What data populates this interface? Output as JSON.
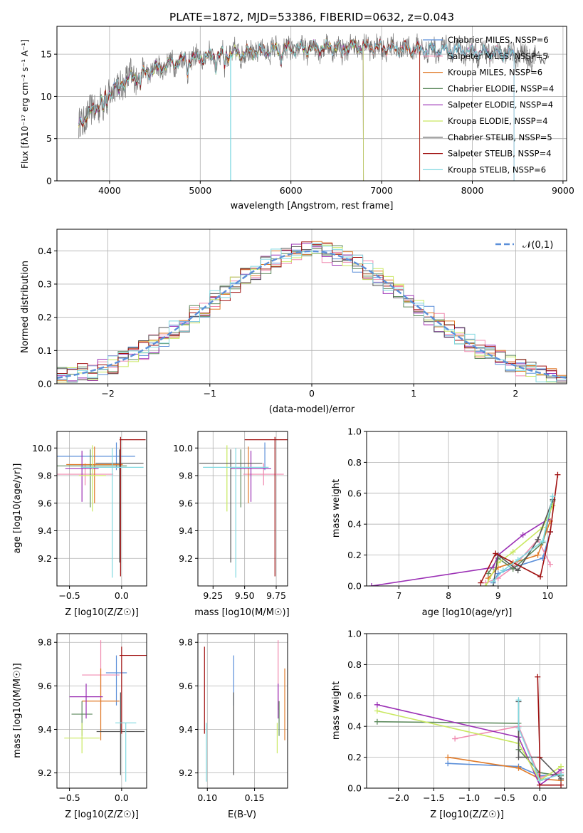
{
  "palette": [
    "#5b8fd9",
    "#f08bb0",
    "#e07a28",
    "#5d8a5d",
    "#9b30b5",
    "#c9e860",
    "#555555",
    "#a01010",
    "#7fd8e0"
  ],
  "panels": {
    "spectrum": {
      "title": "PLATE=1872, MJD=53386, FIBERID=0632, z=0.043",
      "xlabel": "wavelength [Angstrom, rest frame]",
      "ylabel": "Flux [fλ10⁻¹⁷ erg cm⁻² s⁻¹ A⁻¹]",
      "legend": [
        "Chabrier MILES, NSSP=6",
        "Salpeter MILES, NSSP=5",
        "Kroupa MILES, NSSP=6",
        "Chabrier ELODIE, NSSP=4",
        "Salpeter ELODIE, NSSP=4",
        "Kroupa ELODIE, NSSP=4",
        "Chabrier STELIB, NSSP=5",
        "Salpeter STELIB, NSSP=4",
        "Kroupa STELIB, NSSP=6"
      ]
    },
    "hist": {
      "xlabel": "(data-model)/error",
      "ylabel": "Normed distribution",
      "legend": "𝒩(0,1)"
    },
    "age_z": {
      "xlabel": "Z [log10(Z/Z☉)]",
      "ylabel": "age  [log10(age/yr)]"
    },
    "age_m": {
      "xlabel": "mass [log10(M/M☉)]"
    },
    "mw_age": {
      "xlabel": "age  [log10(age/yr)]",
      "ylabel": "mass weight"
    },
    "mass_z": {
      "xlabel": "Z [log10(Z/Z☉)]",
      "ylabel": "mass [log10(M/M☉)]"
    },
    "mass_e": {
      "xlabel": "E(B-V)"
    },
    "mw_z": {
      "xlabel": "Z [log10(Z/Z☉)]",
      "ylabel": "mass weight"
    }
  },
  "chart_data": [
    {
      "type": "line",
      "title": "PLATE=1872, MJD=53386, FIBERID=0632, z=0.043",
      "xlabel": "wavelength [Angstrom, rest frame]",
      "ylabel": "Flux [fλ10⁻¹⁷ erg cm⁻² s⁻¹ A⁻¹]",
      "xlim": [
        3420,
        9040
      ],
      "ylim": [
        0,
        18.3
      ],
      "xticks": [
        4000,
        5000,
        6000,
        7000,
        8000,
        9000
      ],
      "yticks": [
        0,
        5,
        10,
        15
      ],
      "legend_position": "right",
      "continuum": {
        "x": [
          3660,
          3700,
          3800,
          3900,
          4000,
          4100,
          4200,
          4300,
          4500,
          4700,
          5000,
          5300,
          5600,
          6000,
          6400,
          6800,
          7200,
          7600,
          8000,
          8400,
          8700
        ],
        "y": [
          6.5,
          7.2,
          8.2,
          9.3,
          10.5,
          11.4,
          12.0,
          12.4,
          13.2,
          14.0,
          14.6,
          15.0,
          15.3,
          15.6,
          15.8,
          15.9,
          15.7,
          15.5,
          15.3,
          15.0,
          14.6
        ]
      },
      "series": [
        {
          "name": "Chabrier MILES, NSSP=6",
          "x_range": [
            3660,
            8460
          ]
        },
        {
          "name": "Salpeter MILES, NSSP=5",
          "x_range": [
            3660,
            8460
          ]
        },
        {
          "name": "Kroupa MILES, NSSP=6",
          "x_range": [
            3660,
            7420
          ]
        },
        {
          "name": "Chabrier ELODIE, NSSP=4",
          "x_range": [
            3660,
            6800
          ]
        },
        {
          "name": "Salpeter ELODIE, NSSP=4",
          "x_range": [
            3660,
            6800
          ]
        },
        {
          "name": "Kroupa ELODIE, NSSP=4",
          "x_range": [
            3660,
            6800
          ]
        },
        {
          "name": "Chabrier STELIB, NSSP=5",
          "x_range": [
            3660,
            8850
          ]
        },
        {
          "name": "Salpeter STELIB, NSSP=4",
          "x_range": [
            3660,
            7420
          ]
        },
        {
          "name": "Kroupa STELIB, NSSP=6",
          "x_range": [
            3660,
            8460
          ]
        }
      ]
    },
    {
      "type": "histogram",
      "xlabel": "(data-model)/error",
      "ylabel": "Normed distribution",
      "xlim": [
        -2.5,
        2.5
      ],
      "ylim": [
        0,
        0.465
      ],
      "bin_width": 0.1,
      "xticks": [
        -2,
        -1,
        0,
        1,
        2
      ],
      "yticks": [
        0.0,
        0.1,
        0.2,
        0.3,
        0.4
      ],
      "reference_curve": "𝒩(0,1)",
      "legend_position": "top-right"
    },
    {
      "type": "errorbar",
      "xlabel": "Z [log10(Z/Z☉)]",
      "ylabel": "age  [log10(age/yr)]",
      "xlim": [
        -0.62,
        0.24
      ],
      "ylim": [
        9.0,
        10.12
      ],
      "xticks": [
        -0.5,
        0.0
      ],
      "yticks": [
        9.2,
        9.4,
        9.6,
        9.8,
        10.0
      ],
      "points": [
        {
          "x": -0.05,
          "xerr": [
            0.58,
            0.18
          ],
          "y": 9.94,
          "yerr": [
            0.1,
            0.1
          ]
        },
        {
          "x": -0.35,
          "xerr": [
            0.27,
            0.27
          ],
          "y": 9.81,
          "yerr": [
            0.08,
            0.08
          ]
        },
        {
          "x": -0.26,
          "xerr": [
            0.27,
            0.27
          ],
          "y": 9.88,
          "yerr": [
            0.28,
            0.13
          ]
        },
        {
          "x": -0.3,
          "xerr": [
            0.35,
            0.35
          ],
          "y": 9.87,
          "yerr": [
            0.3,
            0.12
          ]
        },
        {
          "x": -0.38,
          "xerr": [
            0.16,
            0.16
          ],
          "y": 9.85,
          "yerr": [
            0.24,
            0.13
          ]
        },
        {
          "x": -0.28,
          "xerr": [
            0.13,
            0.13
          ],
          "y": 9.8,
          "yerr": [
            0.26,
            0.22
          ]
        },
        {
          "x": -0.02,
          "xerr": [
            0.23,
            0.23
          ],
          "y": 9.89,
          "yerr": [
            0.72,
            0.1
          ]
        },
        {
          "x": -0.01,
          "xerr": [
            0.01,
            0.24
          ],
          "y": 10.06,
          "yerr": [
            0.99,
            0.02
          ]
        },
        {
          "x": -0.09,
          "xerr": [
            0.3,
            0.3
          ],
          "y": 9.86,
          "yerr": [
            0.8,
            0.14
          ]
        }
      ]
    },
    {
      "type": "errorbar",
      "xlabel": "mass [log10(M/M☉)]",
      "xlim": [
        9.13,
        9.84
      ],
      "ylim": [
        9.0,
        10.12
      ],
      "xticks": [
        9.25,
        9.5,
        9.75
      ],
      "yticks": [
        9.2,
        9.4,
        9.6,
        9.8,
        10.0
      ],
      "points": [
        {
          "x": 9.66,
          "y": 9.94,
          "yerr": [
            0.1,
            0.1
          ]
        },
        {
          "x": 9.65,
          "xerr": [
            0.16,
            0.16
          ],
          "y": 9.81,
          "yerr": [
            0.08,
            0.08
          ]
        },
        {
          "x": 9.53,
          "y": 9.88,
          "yerr": [
            0.28,
            0.13
          ]
        },
        {
          "x": 9.47,
          "y": 9.87,
          "yerr": [
            0.3,
            0.12
          ]
        },
        {
          "x": 9.55,
          "xerr": [
            0.16,
            0.16
          ],
          "y": 9.85,
          "yerr": [
            0.24,
            0.13
          ]
        },
        {
          "x": 9.36,
          "y": 9.8,
          "yerr": [
            0.26,
            0.22
          ]
        },
        {
          "x": 9.39,
          "xerr": [
            0.25,
            0.25
          ],
          "y": 9.89,
          "yerr": [
            0.72,
            0.1
          ]
        },
        {
          "x": 9.74,
          "xerr": [
            0.24,
            0.24
          ],
          "y": 10.06,
          "yerr": [
            0.99,
            0.02
          ]
        },
        {
          "x": 9.43,
          "xerr": [
            0.26,
            0.26
          ],
          "y": 9.86,
          "yerr": [
            0.8,
            0.14
          ]
        }
      ]
    },
    {
      "type": "line",
      "xlabel": "age  [log10(age/yr)]",
      "ylabel": "mass weight",
      "xlim": [
        6.35,
        10.38
      ],
      "ylim": [
        0,
        1.0
      ],
      "xticks": [
        7,
        8,
        9,
        10
      ],
      "yticks": [
        0.0,
        0.2,
        0.4,
        0.6,
        0.8,
        1.0
      ],
      "series": [
        {
          "x": [
            8.9,
            9.0,
            9.3,
            9.9,
            10.05
          ],
          "y": [
            0.02,
            0.08,
            0.12,
            0.18,
            0.35
          ]
        },
        {
          "x": [
            8.75,
            9.0,
            9.3,
            9.8,
            10.05
          ],
          "y": [
            0.02,
            0.05,
            0.12,
            0.3,
            0.14
          ]
        },
        {
          "x": [
            8.8,
            9.0,
            9.3,
            9.8,
            10.05
          ],
          "y": [
            0.05,
            0.12,
            0.15,
            0.2,
            0.42
          ]
        },
        {
          "x": [
            8.8,
            9.0,
            9.3,
            9.9,
            10.1
          ],
          "y": [
            0.08,
            0.18,
            0.11,
            0.28,
            0.55
          ]
        },
        {
          "x": [
            6.45,
            8.9,
            9.0,
            9.5,
            10.0
          ],
          "y": [
            0.0,
            0.12,
            0.2,
            0.33,
            0.43
          ]
        },
        {
          "x": [
            8.75,
            9.0,
            9.3,
            9.9,
            10.1
          ],
          "y": [
            0.0,
            0.15,
            0.22,
            0.38,
            0.52
          ]
        },
        {
          "x": [
            8.9,
            9.0,
            9.4,
            9.8,
            10.1
          ],
          "y": [
            0.0,
            0.2,
            0.1,
            0.3,
            0.56
          ]
        },
        {
          "x": [
            8.65,
            8.95,
            9.85,
            10.05,
            10.2
          ],
          "y": [
            0.02,
            0.21,
            0.06,
            0.35,
            0.72
          ]
        },
        {
          "x": [
            8.9,
            9.1,
            9.4,
            9.9,
            10.1
          ],
          "y": [
            0.03,
            0.1,
            0.17,
            0.29,
            0.58
          ]
        }
      ]
    },
    {
      "type": "errorbar",
      "xlabel": "Z [log10(Z/Z☉)]",
      "ylabel": "mass [log10(M/M☉)]",
      "xlim": [
        -0.62,
        0.24
      ],
      "ylim": [
        9.13,
        9.84
      ],
      "xticks": [
        -0.5,
        0.0
      ],
      "yticks": [
        9.2,
        9.4,
        9.6,
        9.8
      ],
      "points": [
        {
          "x": -0.05,
          "xerr": [
            0.1,
            0.1
          ],
          "y": 9.66,
          "yerr": [
            0.15,
            0.08
          ]
        },
        {
          "x": -0.2,
          "xerr": [
            0.18,
            0.18
          ],
          "y": 9.65,
          "yerr": [
            0.16,
            0.16
          ]
        },
        {
          "x": -0.2,
          "xerr": [
            0.18,
            0.18
          ],
          "y": 9.53,
          "yerr": [
            0.18,
            0.15
          ]
        },
        {
          "x": -0.38,
          "xerr": [
            0.1,
            0.1
          ],
          "y": 9.47,
          "yerr": [
            0.1,
            0.06
          ]
        },
        {
          "x": -0.34,
          "xerr": [
            0.16,
            0.16
          ],
          "y": 9.55,
          "yerr": [
            0.1,
            0.06
          ]
        },
        {
          "x": -0.38,
          "xerr": [
            0.17,
            0.17
          ],
          "y": 9.36,
          "yerr": [
            0.07,
            0.07
          ]
        },
        {
          "x": -0.01,
          "xerr": [
            0.23,
            0.23
          ],
          "y": 9.39,
          "yerr": [
            0.2,
            0.18
          ]
        },
        {
          "x": 0.0,
          "xerr": [
            0.02,
            0.24
          ],
          "y": 9.74,
          "yerr": [
            0.36,
            0.04
          ]
        },
        {
          "x": 0.04,
          "xerr": [
            0.1,
            0.1
          ],
          "y": 9.43,
          "yerr": [
            0.27,
            0.0
          ]
        }
      ]
    },
    {
      "type": "errorbar",
      "xlabel": "E(B-V)",
      "xlim": [
        0.09,
        0.185
      ],
      "ylim": [
        9.13,
        9.84
      ],
      "xticks": [
        0.1,
        0.15
      ],
      "yticks": [
        9.2,
        9.4,
        9.6,
        9.8
      ],
      "points": [
        {
          "x": 0.128,
          "y": 9.66,
          "yerr": [
            0.15,
            0.08
          ]
        },
        {
          "x": 0.175,
          "y": 9.65,
          "yerr": [
            0.16,
            0.16
          ]
        },
        {
          "x": 0.182,
          "y": 9.53,
          "yerr": [
            0.18,
            0.15
          ]
        },
        {
          "x": 0.176,
          "y": 9.47,
          "yerr": [
            0.1,
            0.06
          ]
        },
        {
          "x": 0.175,
          "y": 9.55,
          "yerr": [
            0.1,
            0.06
          ]
        },
        {
          "x": 0.174,
          "y": 9.36,
          "yerr": [
            0.07,
            0.07
          ]
        },
        {
          "x": 0.128,
          "y": 9.39,
          "yerr": [
            0.2,
            0.18
          ]
        },
        {
          "x": 0.097,
          "y": 9.74,
          "yerr": [
            0.36,
            0.04
          ]
        },
        {
          "x": 0.099,
          "y": 9.43,
          "yerr": [
            0.27,
            0.0
          ]
        }
      ]
    },
    {
      "type": "line",
      "xlabel": "Z [log10(Z/Z☉)]",
      "ylabel": "mass weight",
      "xlim": [
        -2.45,
        0.38
      ],
      "ylim": [
        0,
        1.0
      ],
      "xticks": [
        -2.0,
        -1.5,
        -1.0,
        -0.5,
        0.0
      ],
      "yticks": [
        0.0,
        0.2,
        0.4,
        0.6,
        0.8,
        1.0
      ],
      "series": [
        {
          "x": [
            -1.3,
            -0.3,
            0.0,
            0.3
          ],
          "y": [
            0.16,
            0.14,
            0.08,
            0.09
          ]
        },
        {
          "x": [
            -1.2,
            -0.3,
            0.0,
            0.3
          ],
          "y": [
            0.32,
            0.4,
            0.07,
            0.1
          ]
        },
        {
          "x": [
            -1.3,
            -0.3,
            0.0,
            0.3
          ],
          "y": [
            0.2,
            0.13,
            0.06,
            0.05
          ]
        },
        {
          "x": [
            -2.3,
            -0.3,
            -0.3,
            0.0,
            0.3
          ],
          "y": [
            0.43,
            0.42,
            0.25,
            0.1,
            0.08
          ]
        },
        {
          "x": [
            -2.3,
            -0.3,
            0.0,
            0.3
          ],
          "y": [
            0.54,
            0.33,
            0.02,
            0.12
          ]
        },
        {
          "x": [
            -2.3,
            -0.3,
            0.0,
            0.3
          ],
          "y": [
            0.5,
            0.29,
            0.05,
            0.14
          ]
        },
        {
          "x": [
            -0.3,
            -0.3,
            0.0,
            0.3
          ],
          "y": [
            0.56,
            0.2,
            0.2,
            0.06
          ]
        },
        {
          "x": [
            -0.03,
            0.0,
            0.0,
            0.3
          ],
          "y": [
            0.72,
            0.2,
            0.02,
            0.02
          ]
        },
        {
          "x": [
            -0.3,
            -0.3,
            0.0,
            0.3
          ],
          "y": [
            0.57,
            0.39,
            0.05,
            0.09
          ]
        }
      ]
    }
  ]
}
